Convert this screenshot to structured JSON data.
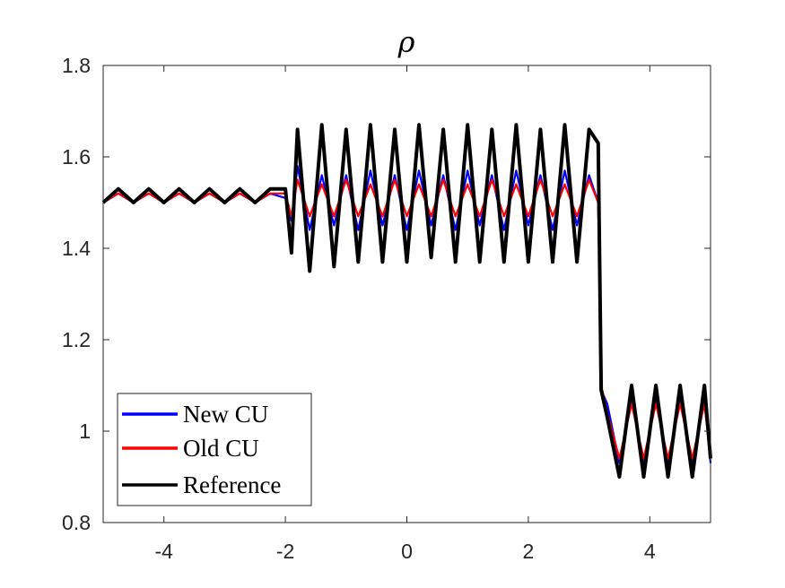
{
  "chart_data": {
    "type": "line",
    "title": "ρ",
    "xlabel": "",
    "ylabel": "",
    "xlim": [
      -5,
      5
    ],
    "ylim": [
      0.8,
      1.8
    ],
    "x_ticks": [
      -4,
      -2,
      0,
      2,
      4
    ],
    "y_ticks": [
      0.8,
      1,
      1.2,
      1.4,
      1.6,
      1.8
    ],
    "x_tick_labels": [
      "-4",
      "-2",
      "0",
      "2",
      "4"
    ],
    "y_tick_labels": [
      "0.8",
      "1",
      "1.2",
      "1.4",
      "1.6",
      "1.8"
    ],
    "grid": false,
    "legend_position": "bottom-left",
    "series": [
      {
        "name": "New CU",
        "color": "#0000ff",
        "x": [
          -5,
          -4.75,
          -4.5,
          -4.25,
          -4,
          -3.75,
          -3.5,
          -3.25,
          -3,
          -2.75,
          -2.5,
          -2.25,
          -2,
          -1.9,
          -1.8,
          -1.6,
          -1.4,
          -1.2,
          -1,
          -0.8,
          -0.6,
          -0.4,
          -0.2,
          0,
          0.2,
          0.4,
          0.6,
          0.8,
          1,
          1.2,
          1.4,
          1.6,
          1.8,
          2,
          2.2,
          2.4,
          2.6,
          2.8,
          3,
          3.15,
          3.2,
          3.3,
          3.5,
          3.7,
          3.9,
          4.1,
          4.3,
          4.5,
          4.7,
          4.9,
          5
        ],
        "y": [
          1.5,
          1.52,
          1.5,
          1.52,
          1.5,
          1.52,
          1.5,
          1.52,
          1.5,
          1.52,
          1.5,
          1.52,
          1.51,
          1.46,
          1.58,
          1.44,
          1.56,
          1.45,
          1.56,
          1.44,
          1.57,
          1.45,
          1.56,
          1.44,
          1.57,
          1.45,
          1.56,
          1.44,
          1.57,
          1.45,
          1.56,
          1.44,
          1.57,
          1.45,
          1.56,
          1.44,
          1.57,
          1.45,
          1.56,
          1.5,
          1.09,
          1.06,
          0.93,
          1.07,
          0.93,
          1.07,
          0.93,
          1.07,
          0.93,
          1.07,
          0.93
        ]
      },
      {
        "name": "Old CU",
        "color": "#ff0000",
        "x": [
          -5,
          -4.75,
          -4.5,
          -4.25,
          -4,
          -3.75,
          -3.5,
          -3.25,
          -3,
          -2.75,
          -2.5,
          -2.25,
          -2,
          -1.9,
          -1.8,
          -1.6,
          -1.4,
          -1.2,
          -1,
          -0.8,
          -0.6,
          -0.4,
          -0.2,
          0,
          0.2,
          0.4,
          0.6,
          0.8,
          1,
          1.2,
          1.4,
          1.6,
          1.8,
          2,
          2.2,
          2.4,
          2.6,
          2.8,
          3,
          3.15,
          3.2,
          3.3,
          3.5,
          3.7,
          3.9,
          4.1,
          4.3,
          4.5,
          4.7,
          4.9,
          5
        ],
        "y": [
          1.5,
          1.52,
          1.5,
          1.52,
          1.5,
          1.52,
          1.5,
          1.52,
          1.5,
          1.52,
          1.5,
          1.52,
          1.52,
          1.47,
          1.55,
          1.47,
          1.54,
          1.47,
          1.55,
          1.47,
          1.54,
          1.47,
          1.55,
          1.47,
          1.54,
          1.47,
          1.55,
          1.47,
          1.54,
          1.47,
          1.55,
          1.47,
          1.54,
          1.47,
          1.55,
          1.47,
          1.54,
          1.47,
          1.55,
          1.5,
          1.1,
          1.04,
          0.94,
          1.06,
          0.94,
          1.06,
          0.94,
          1.06,
          0.94,
          1.06,
          0.94
        ]
      },
      {
        "name": "Reference",
        "color": "#000000",
        "x": [
          -5,
          -4.75,
          -4.5,
          -4.25,
          -4,
          -3.75,
          -3.5,
          -3.25,
          -3,
          -2.75,
          -2.5,
          -2.25,
          -2,
          -1.9,
          -1.8,
          -1.6,
          -1.4,
          -1.2,
          -1,
          -0.8,
          -0.6,
          -0.4,
          -0.2,
          0,
          0.2,
          0.4,
          0.6,
          0.8,
          1,
          1.2,
          1.4,
          1.6,
          1.8,
          2,
          2.2,
          2.4,
          2.6,
          2.8,
          3,
          3.15,
          3.2,
          3.3,
          3.5,
          3.7,
          3.9,
          4.1,
          4.3,
          4.5,
          4.7,
          4.9,
          5
        ],
        "y": [
          1.5,
          1.53,
          1.5,
          1.53,
          1.5,
          1.53,
          1.5,
          1.53,
          1.5,
          1.53,
          1.5,
          1.53,
          1.53,
          1.39,
          1.66,
          1.35,
          1.67,
          1.36,
          1.66,
          1.37,
          1.67,
          1.37,
          1.66,
          1.37,
          1.67,
          1.38,
          1.66,
          1.37,
          1.67,
          1.37,
          1.66,
          1.37,
          1.67,
          1.37,
          1.66,
          1.37,
          1.67,
          1.37,
          1.66,
          1.63,
          1.09,
          1.03,
          0.9,
          1.1,
          0.9,
          1.1,
          0.9,
          1.1,
          0.9,
          1.1,
          0.94
        ]
      }
    ]
  }
}
